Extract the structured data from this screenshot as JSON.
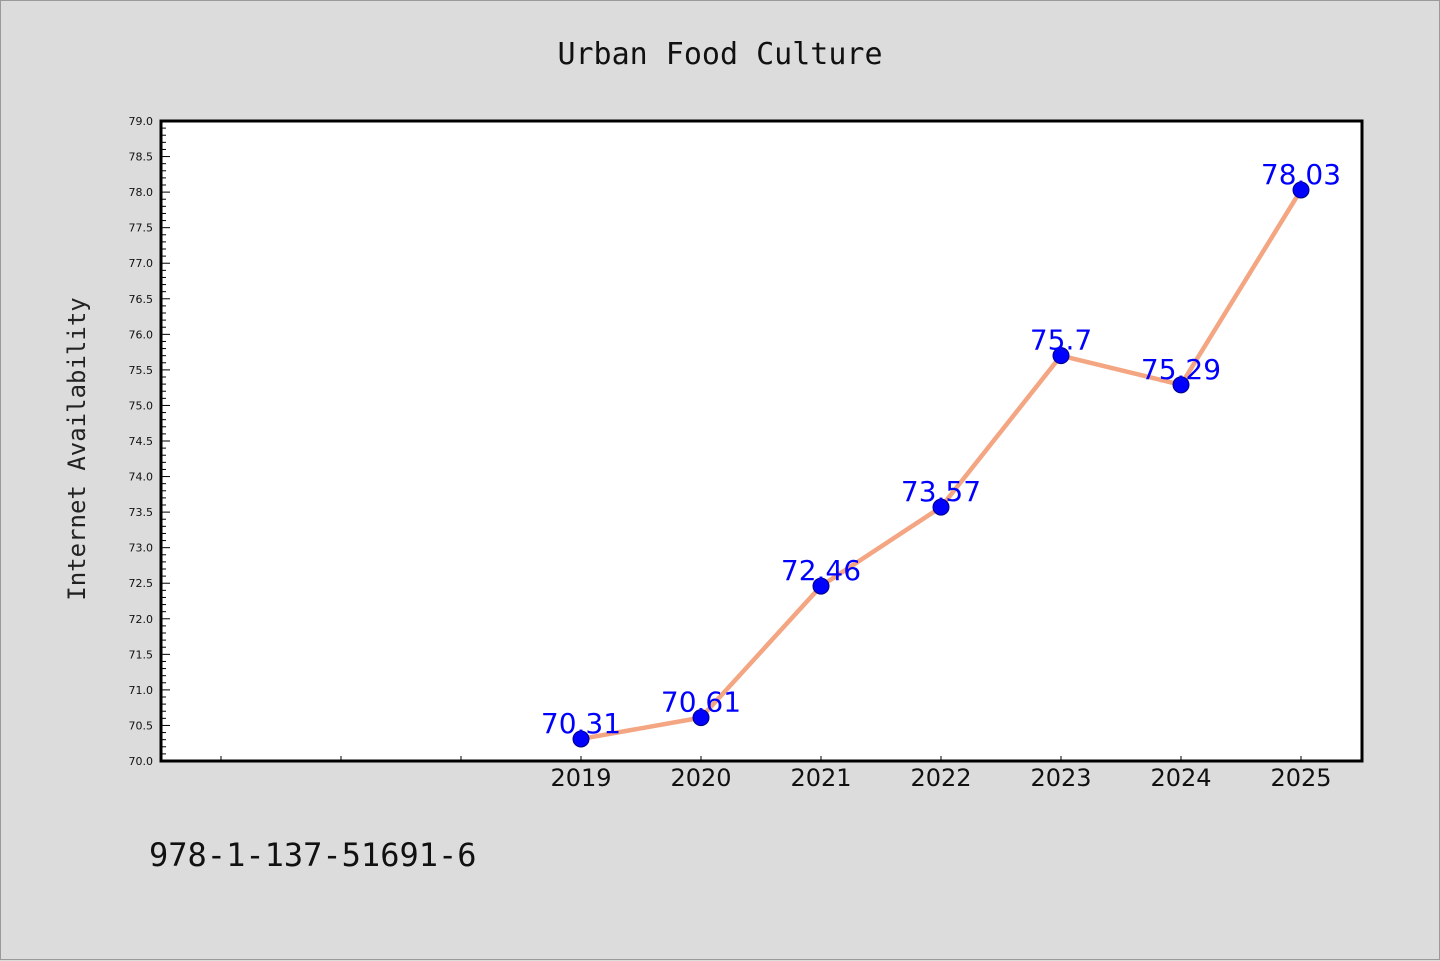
{
  "chart_data": {
    "type": "line",
    "title": "Urban Food Culture",
    "xlabel": "",
    "ylabel": "Internet Availability",
    "x": [
      "2019",
      "2020",
      "2021",
      "2022",
      "2023",
      "2024",
      "2025"
    ],
    "series": [
      {
        "values": [
          70.31,
          70.61,
          72.46,
          73.57,
          75.7,
          75.29,
          78.03
        ]
      }
    ],
    "data_labels": [
      "70.31",
      "70.61",
      "72.46",
      "73.57",
      "75.7",
      "75.29",
      "78.03"
    ],
    "ylim": [
      70.0,
      79.0
    ],
    "yticks": [
      "70.0",
      "70.5",
      "71.0",
      "71.5",
      "72.0",
      "72.5",
      "73.0",
      "73.5",
      "74.0",
      "74.5",
      "75.0",
      "75.5",
      "76.0",
      "76.5",
      "77.0",
      "77.5",
      "78.0",
      "78.5",
      "79.0"
    ],
    "grid": false,
    "line_color": "#f4a582",
    "marker_color": "#0000ff"
  },
  "footer": {
    "text": "978-1-137-51691-6"
  }
}
